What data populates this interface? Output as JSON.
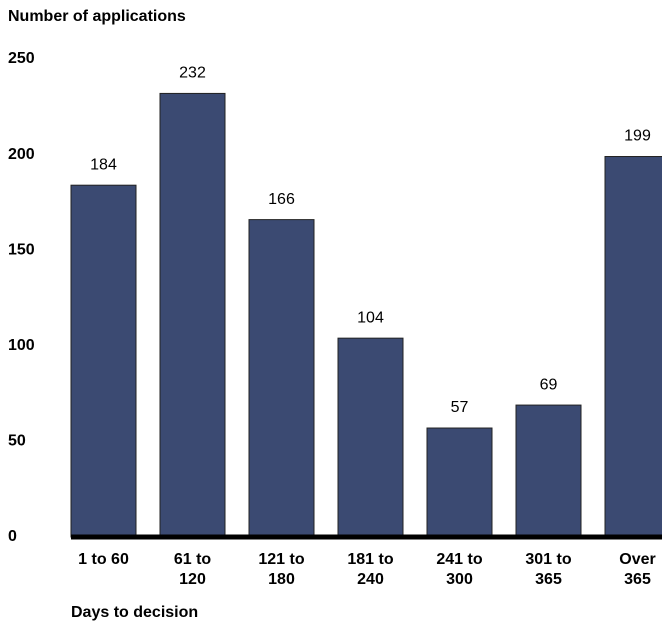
{
  "chart_data": {
    "type": "bar",
    "y_label": "Number of applications",
    "x_label": "Days to decision",
    "categories": [
      "1 to 60",
      "61 to 120",
      "121 to 180",
      "181 to 240",
      "241 to 300",
      "301 to 365",
      "Over 365"
    ],
    "values": [
      184,
      232,
      166,
      104,
      57,
      69,
      199
    ],
    "color": "#3b4a72",
    "ylim": [
      0,
      250
    ],
    "yticks": [
      0,
      50,
      100,
      150,
      200,
      250
    ],
    "grid": false
  }
}
